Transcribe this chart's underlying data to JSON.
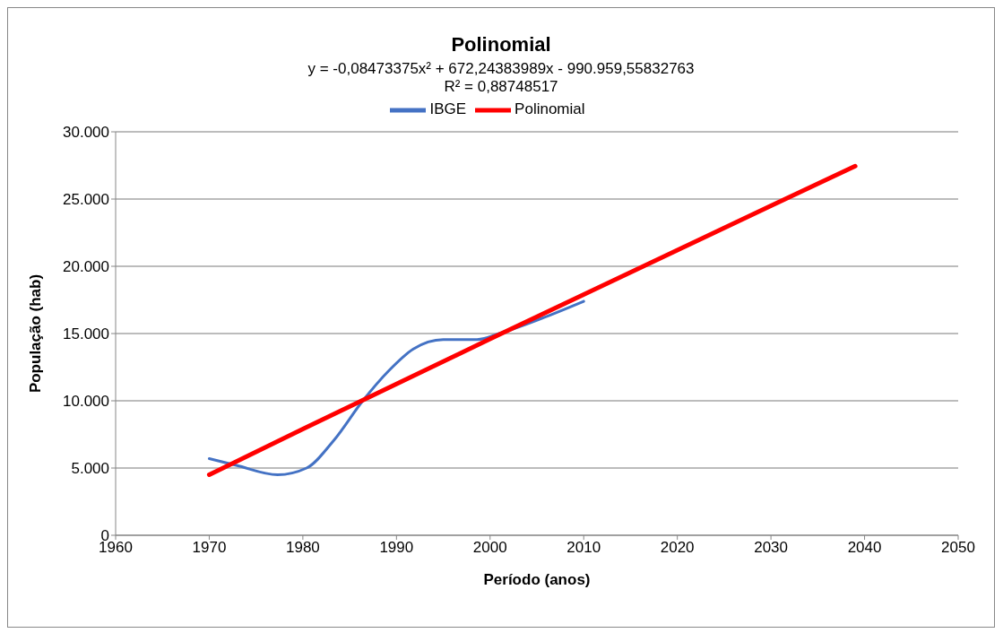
{
  "chart_data": {
    "type": "line",
    "title": "Polinomial",
    "subtitle": "y = -0,08473375x² + 672,24383989x - 990.959,55832763",
    "annotations": [
      "R² = 0,88748517"
    ],
    "xlabel": "Período (anos)",
    "ylabel": "População (hab)",
    "xlim": [
      1960,
      2050
    ],
    "xticks": [
      1960,
      1970,
      1980,
      1990,
      2000,
      2010,
      2020,
      2030,
      2040,
      2050
    ],
    "ylim": [
      0,
      30000
    ],
    "yticks": [
      0,
      {
        "value": 5000,
        "label": "5.000"
      },
      {
        "value": 10000,
        "label": "10.000"
      },
      {
        "value": 15000,
        "label": "15.000"
      },
      {
        "value": 20000,
        "label": "20.000"
      },
      {
        "value": 25000,
        "label": "25.000"
      },
      {
        "value": 30000,
        "label": "30.000"
      }
    ],
    "grid": "y",
    "legend": "top",
    "marker": "none",
    "line_style": "solid",
    "series": [
      {
        "name": "IBGE",
        "color": "#4472c4",
        "x": [
          1970,
          1972.9,
          1977.3,
          1980.4,
          1983.3,
          1986.4,
          1989.2,
          1991.8,
          1995,
          1998.6,
          2001.2,
          2005.4,
          2010
        ],
        "values": [
          5700,
          5200,
          4500,
          5000,
          7050,
          10000,
          12250,
          13850,
          14550,
          14550,
          15050,
          16100,
          17400
        ]
      },
      {
        "name": "Polinomial",
        "color": "#ff0000",
        "x": [
          1970,
          1980,
          1990,
          2000,
          2010,
          2020,
          2030,
          2039
        ],
        "values": [
          4500,
          7900,
          11250,
          14600,
          17900,
          21200,
          24500,
          27450
        ]
      }
    ]
  }
}
